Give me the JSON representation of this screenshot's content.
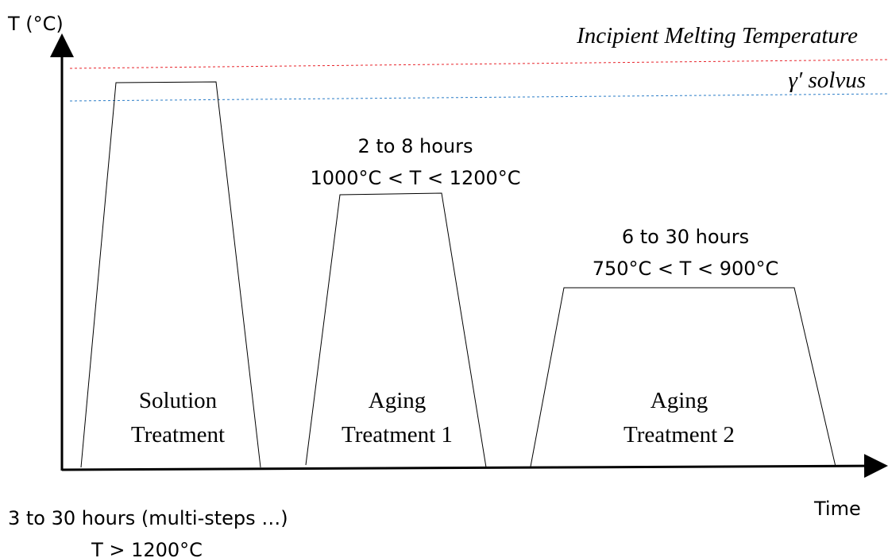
{
  "axes": {
    "y_label": "T (°C)",
    "x_label": "Time"
  },
  "reference_lines": [
    {
      "label": "Incipient Melting Temperature",
      "color": "#e8232a"
    },
    {
      "label": "γ′ solvus",
      "color": "#2a7cc7"
    }
  ],
  "stages": [
    {
      "name": [
        "Solution",
        "Treatment"
      ],
      "duration": "3 to 30 hours (multi-steps …)",
      "temperature": "T > 1200°C"
    },
    {
      "name": [
        "Aging",
        "Treatment 1"
      ],
      "duration": "2 to 8 hours",
      "temperature": "1000°C < T < 1200°C"
    },
    {
      "name": [
        "Aging",
        "Treatment 2"
      ],
      "duration": "6 to 30 hours",
      "temperature": "750°C < T < 900°C"
    }
  ]
}
